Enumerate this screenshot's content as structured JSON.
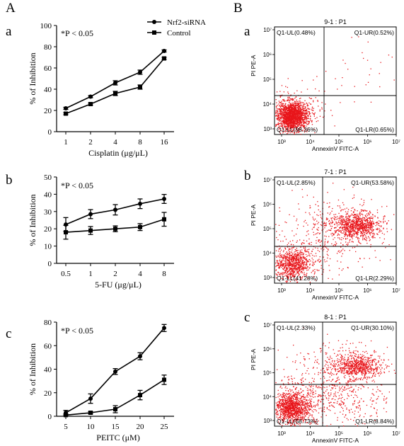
{
  "panel_labels": {
    "A": "A",
    "B": "B"
  },
  "sub_labels_left": [
    "a",
    "b",
    "c"
  ],
  "sub_labels_right": [
    "a",
    "b",
    "c"
  ],
  "legend": [
    "Nrf2-siRNA",
    "Control"
  ],
  "chart_data": [
    {
      "type": "line",
      "annotation": "*P < 0.05",
      "categories": [
        "1",
        "2",
        "4",
        "8",
        "16"
      ],
      "xlabel": "Cisplatin (μg/μL)",
      "ylabel": "% of Inhibition",
      "ylim": [
        0,
        100
      ],
      "yticks": [
        0,
        20,
        40,
        60,
        80,
        100
      ],
      "series": [
        {
          "name": "Nrf2-siRNA",
          "marker": "circle",
          "values": [
            22,
            33,
            46,
            56,
            76
          ],
          "errors": [
            1,
            1,
            2,
            2,
            1
          ]
        },
        {
          "name": "Control",
          "marker": "square",
          "values": [
            17,
            26,
            36,
            42,
            69
          ],
          "errors": [
            1,
            1,
            2,
            2,
            1
          ]
        }
      ]
    },
    {
      "type": "line",
      "annotation": "*P < 0.05",
      "categories": [
        "0.5",
        "1",
        "2",
        "4",
        "8"
      ],
      "xlabel": "5-FU (μg/μL)",
      "ylabel": "% of Inhibition",
      "ylim": [
        0,
        50
      ],
      "yticks": [
        0,
        10,
        20,
        30,
        40,
        50
      ],
      "series": [
        {
          "name": "Nrf2-siRNA",
          "marker": "circle",
          "values": [
            22.5,
            28.5,
            31,
            34.5,
            37.3
          ],
          "errors": [
            4,
            2.6,
            3,
            2.8,
            2.6
          ]
        },
        {
          "name": "Control",
          "marker": "square",
          "values": [
            18,
            19,
            20,
            21,
            25.5
          ],
          "errors": [
            4,
            2.3,
            1.7,
            2,
            4
          ]
        }
      ]
    },
    {
      "type": "line",
      "annotation": "*P < 0.05",
      "categories": [
        "5",
        "10",
        "15",
        "20",
        "25"
      ],
      "xlabel": "PEITC (μM)",
      "ylabel": "% of Inhibition",
      "ylim": [
        0,
        80
      ],
      "yticks": [
        0,
        20,
        40,
        60,
        80
      ],
      "series": [
        {
          "name": "Nrf2-siRNA",
          "marker": "circle",
          "values": [
            3,
            15,
            38,
            51,
            75
          ],
          "errors": [
            2,
            4,
            2.5,
            3,
            3
          ]
        },
        {
          "name": "Control",
          "marker": "square",
          "values": [
            1,
            3,
            6,
            18,
            31
          ],
          "errors": [
            1,
            1,
            3,
            4,
            4
          ]
        }
      ]
    }
  ],
  "flow_plots": [
    {
      "title": "9-1 : P1",
      "xlabel": "AnnexinV FITC-A",
      "ylabel": "PI PE-A",
      "xticks": [
        "10³",
        "10⁴",
        "10⁵",
        "10⁶",
        "10⁷"
      ],
      "yticks": [
        "10⁷",
        "10⁶",
        "10⁵",
        "10⁴",
        "10³"
      ],
      "quadrants": {
        "UL": "Q1-UL(0.48%)",
        "UR": "Q1-UR(0.52%)",
        "LL": "Q1-LL(98.36%)",
        "LR": "Q1-LR(0.65%)"
      },
      "dot_color": "#e8161b"
    },
    {
      "title": "7-1 : P1",
      "xlabel": "AnnexinV FITC-A",
      "ylabel": "PI PE-A",
      "xticks": [
        "10³",
        "10⁴",
        "10⁵",
        "10⁶",
        "10⁷"
      ],
      "yticks": [
        "10⁷",
        "10⁶",
        "10⁵",
        "10⁴",
        "10³"
      ],
      "quadrants": {
        "UL": "Q1-UL(2.85%)",
        "UR": "Q1-UR(53.58%)",
        "LL": "Q1-LL(41.28%)",
        "LR": "Q1-LR(2.29%)"
      },
      "dot_color": "#e8161b"
    },
    {
      "title": "8-1 : P1",
      "xlabel": "AnnexinV FITC-A",
      "ylabel": "PI PE-A",
      "xticks": [
        "10³",
        "10⁴",
        "10⁵",
        "10⁶",
        "10⁷"
      ],
      "yticks": [
        "10⁷",
        "10⁶",
        "10⁵",
        "10⁴",
        "10³"
      ],
      "quadrants": {
        "UL": "Q1-UL(2.33%)",
        "UR": "Q1-UR(30.10%)",
        "LL": "Q1-LL(58.73%)",
        "LR": "Q1-LR(8.84%)"
      },
      "dot_color": "#e8161b"
    }
  ]
}
